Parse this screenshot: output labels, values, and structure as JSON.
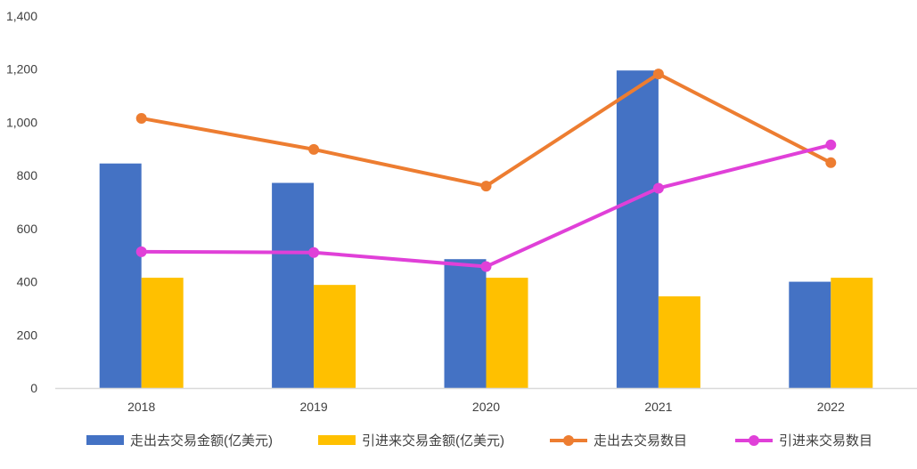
{
  "chart_data": {
    "type": "bar",
    "categories": [
      "2018",
      "2019",
      "2020",
      "2021",
      "2022"
    ],
    "yticks": [
      "0",
      "200",
      "400",
      "600",
      "800",
      "1,000",
      "1,200",
      "1,400"
    ],
    "ylim": [
      0,
      1400
    ],
    "grid": false,
    "legend_position": "bottom",
    "series": [
      {
        "name": "走出去交易金额(亿美元)",
        "kind": "bar",
        "color": "#4472C4",
        "values": [
          845,
          772,
          485,
          1195,
          400
        ]
      },
      {
        "name": "引进来交易金额(亿美元)",
        "kind": "bar",
        "color": "#FFC000",
        "values": [
          415,
          388,
          415,
          345,
          415
        ]
      },
      {
        "name": "走出去交易数目",
        "kind": "line",
        "color": "#ED7D31",
        "values": [
          1015,
          898,
          760,
          1182,
          848
        ]
      },
      {
        "name": "引进来交易数目",
        "kind": "line",
        "color": "#E040D8",
        "values": [
          513,
          510,
          457,
          752,
          915
        ]
      }
    ]
  }
}
